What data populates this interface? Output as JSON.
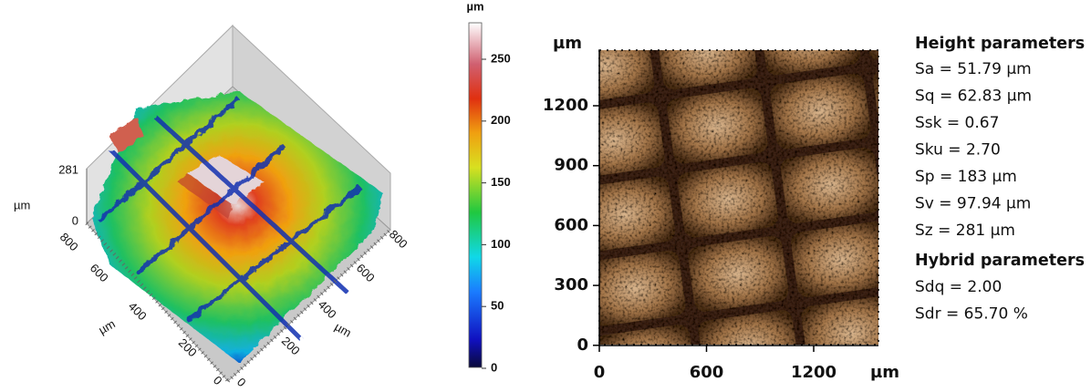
{
  "surface_3d": {
    "z_labels": [
      "281",
      "0"
    ],
    "z_unit": "µm",
    "left_axis_labels": [
      "800",
      "600",
      "400",
      "200",
      "0"
    ],
    "left_unit": "µm",
    "right_axis_labels": [
      "800",
      "600",
      "400",
      "200",
      "0"
    ],
    "right_unit": "µm"
  },
  "colorbar": {
    "unit": "µm",
    "ticks": [
      "250",
      "200",
      "150",
      "100",
      "50",
      "0"
    ]
  },
  "image_2d": {
    "y_unit": "µm",
    "y_ticks": [
      "1200",
      "900",
      "600",
      "300",
      "0"
    ],
    "x_ticks": [
      "0",
      "600",
      "1200"
    ],
    "x_unit": "µm"
  },
  "parameters": {
    "height_title": "Height parameters",
    "height": [
      "Sa = 51.79 µm",
      "Sq = 62.83 µm",
      "Ssk = 0.67",
      "Sku = 2.70",
      "Sp = 183 µm",
      "Sv = 97.94 µm",
      "Sz = 281 µm"
    ],
    "hybrid_title": "Hybrid parameters",
    "hybrid": [
      "Sdq = 2.00",
      "Sdr = 65.70 %"
    ]
  }
}
